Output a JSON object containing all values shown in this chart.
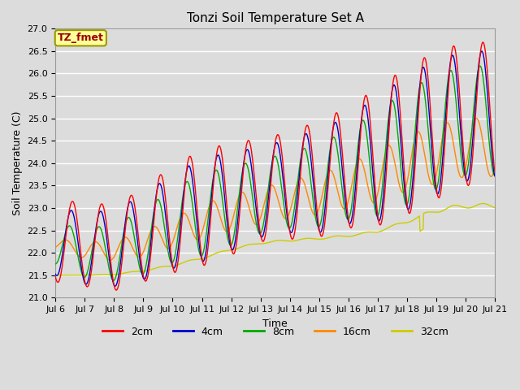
{
  "title": "Tonzi Soil Temperature Set A",
  "xlabel": "Time",
  "ylabel": "Soil Temperature (C)",
  "annotation": "TZ_fmet",
  "ylim": [
    21.0,
    27.0
  ],
  "yticks": [
    21.0,
    21.5,
    22.0,
    22.5,
    23.0,
    23.5,
    24.0,
    24.5,
    25.0,
    25.5,
    26.0,
    26.5,
    27.0
  ],
  "xtick_labels": [
    "Jul 6",
    "Jul 7",
    "Jul 8",
    "Jul 9",
    "Jul 10",
    "Jul 11",
    "Jul 12",
    "Jul 13",
    "Jul 14",
    "Jul 15",
    "Jul 16",
    "Jul 17",
    "Jul 18",
    "Jul 19",
    "Jul 20",
    "Jul 21"
  ],
  "legend_labels": [
    "2cm",
    "4cm",
    "8cm",
    "16cm",
    "32cm"
  ],
  "line_colors": [
    "#ff0000",
    "#0000cc",
    "#00aa00",
    "#ff8800",
    "#cccc00"
  ],
  "background_color": "#dcdcdc",
  "plot_bg_color": "#dcdcdc",
  "grid_color": "#ffffff",
  "n_days": 15,
  "points_per_day": 48,
  "base_2cm": [
    22.25,
    22.2,
    22.1,
    22.4,
    22.75,
    23.0,
    23.2,
    23.4,
    23.5,
    23.65,
    23.9,
    24.15,
    24.5,
    24.85,
    25.1
  ],
  "base_4cm": [
    22.25,
    22.1,
    22.1,
    22.35,
    22.7,
    22.95,
    23.15,
    23.35,
    23.5,
    23.6,
    23.85,
    24.1,
    24.45,
    24.8,
    25.05
  ],
  "base_8cm": [
    22.2,
    22.0,
    22.0,
    22.25,
    22.6,
    22.85,
    23.05,
    23.25,
    23.4,
    23.5,
    23.75,
    24.0,
    24.35,
    24.7,
    24.95
  ],
  "base_16cm": [
    22.2,
    22.05,
    22.05,
    22.2,
    22.45,
    22.7,
    22.9,
    23.05,
    23.2,
    23.3,
    23.5,
    23.7,
    24.0,
    24.2,
    24.35
  ],
  "base_32cm": [
    21.5,
    21.5,
    21.52,
    21.6,
    21.72,
    21.88,
    22.08,
    22.22,
    22.28,
    22.32,
    22.38,
    22.48,
    22.7,
    22.95,
    23.05
  ],
  "amp_2cm": [
    0.9,
    0.95,
    0.95,
    1.05,
    1.2,
    1.3,
    1.25,
    1.15,
    1.2,
    1.3,
    1.35,
    1.55,
    1.65,
    1.65,
    1.6
  ],
  "amp_4cm": [
    0.75,
    0.8,
    0.85,
    0.95,
    1.05,
    1.15,
    1.1,
    1.0,
    1.05,
    1.15,
    1.2,
    1.4,
    1.5,
    1.5,
    1.45
  ],
  "amp_8cm": [
    0.45,
    0.55,
    0.62,
    0.72,
    0.82,
    0.92,
    0.88,
    0.82,
    0.85,
    0.92,
    1.0,
    1.18,
    1.28,
    1.28,
    1.22
  ],
  "amp_16cm": [
    0.12,
    0.18,
    0.22,
    0.28,
    0.32,
    0.38,
    0.4,
    0.4,
    0.42,
    0.45,
    0.5,
    0.56,
    0.62,
    0.65,
    0.65
  ],
  "amp_32cm": [
    0.0,
    0.0,
    0.01,
    0.01,
    0.02,
    0.02,
    0.02,
    0.02,
    0.02,
    0.02,
    0.02,
    0.02,
    0.03,
    0.05,
    0.05
  ],
  "phase_2cm": 0.0,
  "phase_4cm": 0.04,
  "phase_8cm": 0.1,
  "phase_16cm": 0.22,
  "phase_32cm": 0.0
}
